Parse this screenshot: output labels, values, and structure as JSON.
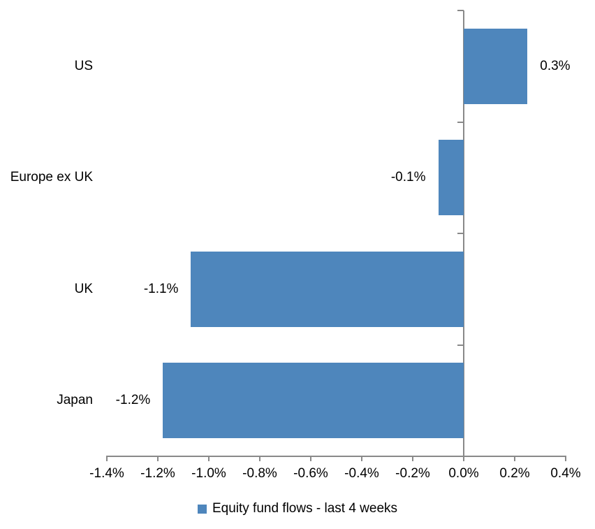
{
  "chart_data": {
    "type": "bar",
    "orientation": "horizontal",
    "title": "",
    "xlabel": "",
    "ylabel": "",
    "categories": [
      "US",
      "Europe ex UK",
      "UK",
      "Japan"
    ],
    "series": [
      {
        "name": "Equity fund flows - last 4 weeks",
        "values": [
          0.25,
          -0.1,
          -1.07,
          -1.18
        ],
        "data_labels": [
          "0.3%",
          "-0.1%",
          "-1.1%",
          "-1.2%"
        ]
      }
    ],
    "xlim": [
      -1.4,
      0.4
    ],
    "x_ticks": [
      -1.4,
      -1.2,
      -1.0,
      -0.8,
      -0.6,
      -0.4,
      -0.2,
      0.0,
      0.2,
      0.4
    ],
    "x_tick_labels": [
      "-1.4%",
      "-1.2%",
      "-1.0%",
      "-0.8%",
      "-0.6%",
      "-0.4%",
      "-0.2%",
      "0.0%",
      "0.2%",
      "0.4%"
    ],
    "grid": false,
    "legend_position": "bottom",
    "bar_color": "#4E86BC",
    "axis_color": "#898989",
    "text_color": "#000000"
  },
  "legend": {
    "items": [
      {
        "label": "Equity fund flows - last 4 weeks",
        "color": "#4E86BC"
      }
    ]
  }
}
